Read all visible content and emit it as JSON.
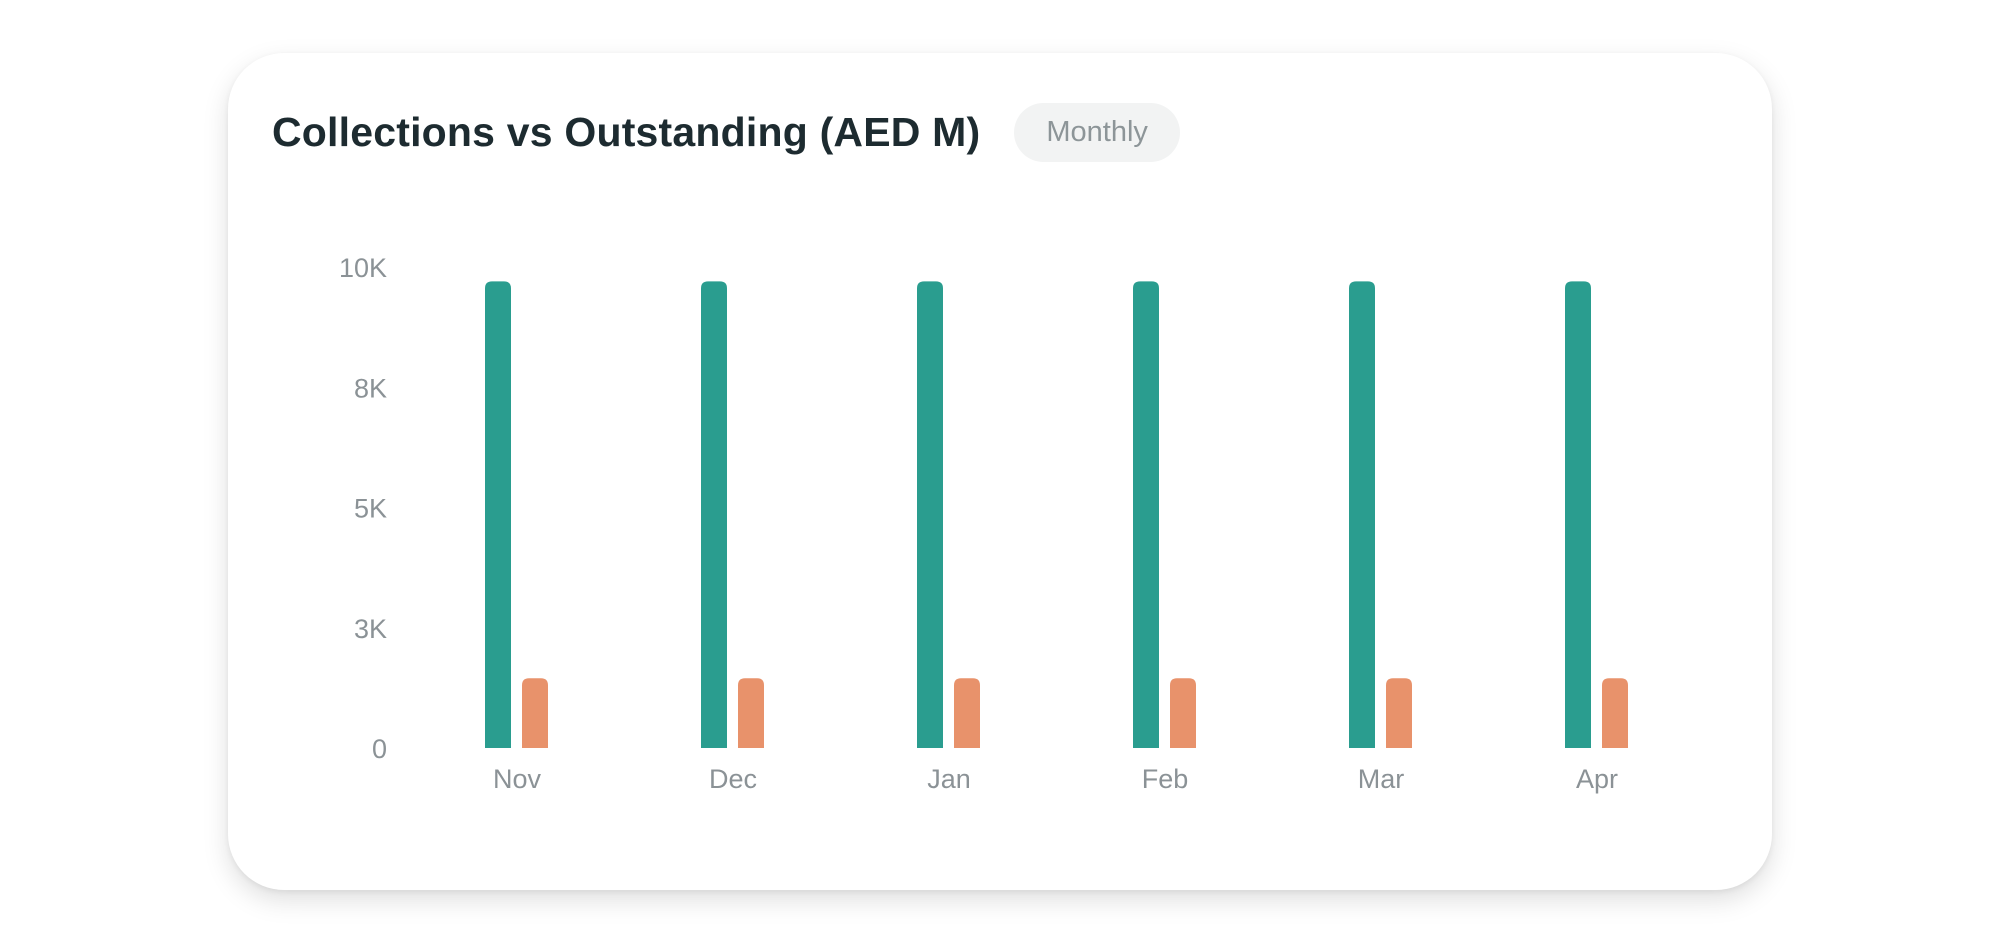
{
  "card": {
    "title": "Collections vs Outstanding (AED M)",
    "period_badge": "Monthly"
  },
  "colors": {
    "collections": "#2a9d8f",
    "outstanding": "#e8926b"
  },
  "chart_data": {
    "type": "bar",
    "title": "Collections vs Outstanding (AED M)",
    "categories": [
      "Nov",
      "Dec",
      "Jan",
      "Feb",
      "Mar",
      "Apr"
    ],
    "series": [
      {
        "values": [
          9700,
          9700,
          9700,
          9700,
          9700,
          9700
        ],
        "color": "#2a9d8f"
      },
      {
        "values": [
          1450,
          1450,
          1450,
          1450,
          1450,
          1450
        ],
        "color": "#e8926b"
      }
    ],
    "y_ticks": [
      {
        "value": 0,
        "label": "0"
      },
      {
        "value": 2500,
        "label": "3K"
      },
      {
        "value": 5000,
        "label": "5K"
      },
      {
        "value": 7500,
        "label": "8K"
      },
      {
        "value": 10000,
        "label": "10K"
      }
    ],
    "ylim": [
      0,
      10000
    ],
    "grid": false,
    "legend": "none"
  }
}
